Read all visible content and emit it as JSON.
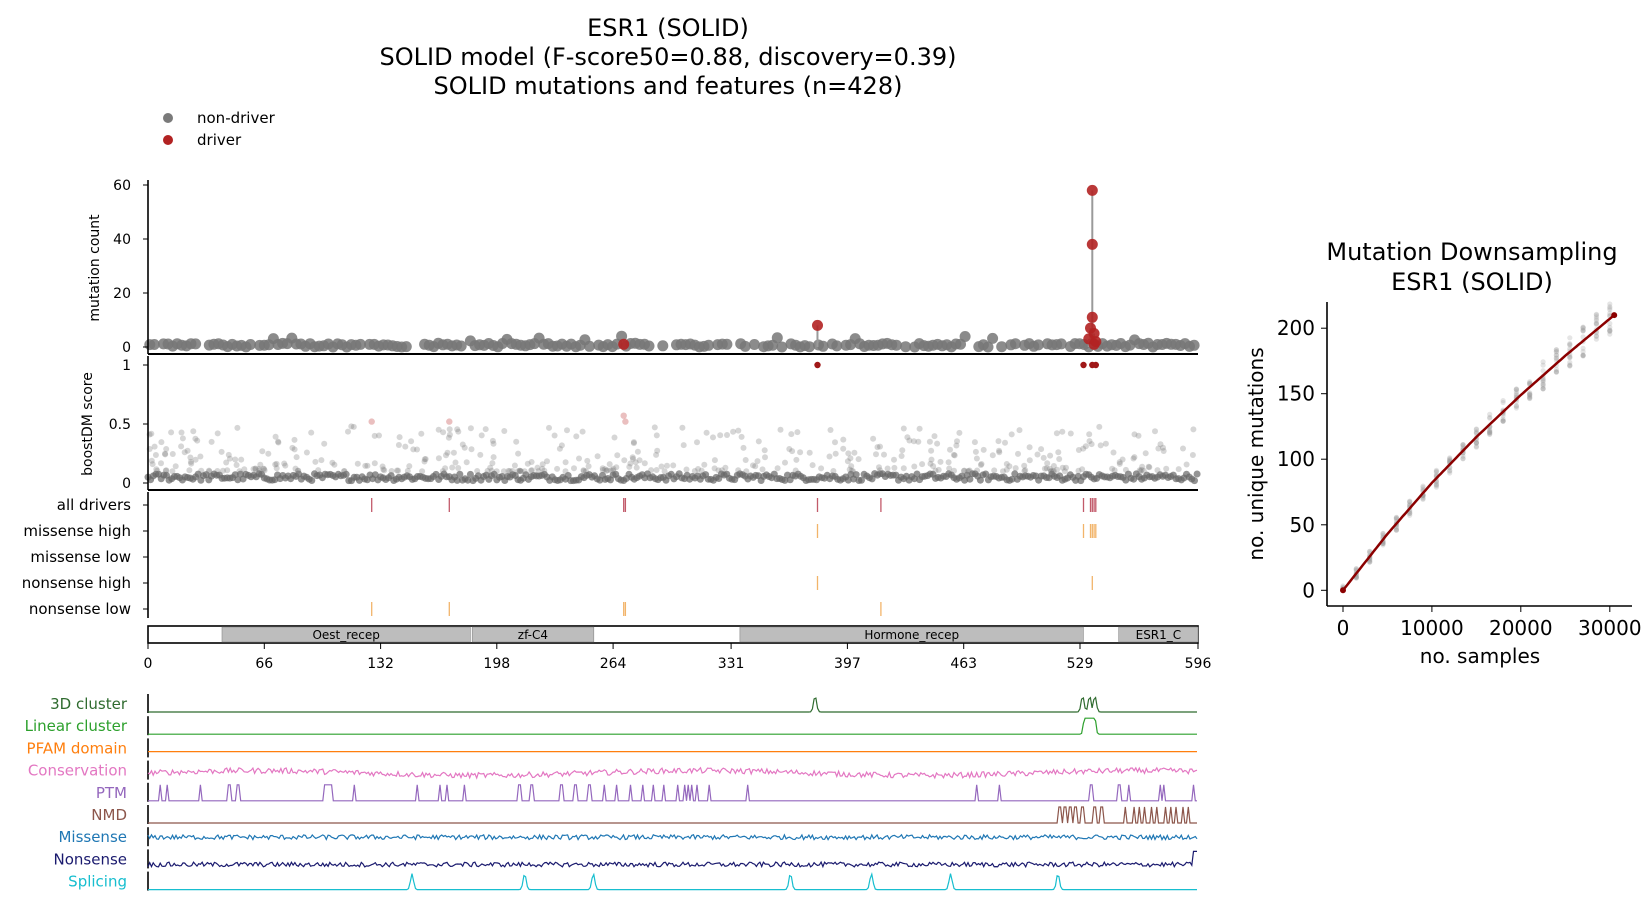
{
  "figure": {
    "title_lines": [
      "ESR1 (SOLID)",
      "SOLID model (F-score50=0.88, discovery=0.39)",
      "SOLID mutations and features (n=428)"
    ],
    "legend": [
      {
        "label": "non-driver",
        "color": "#7a7a7a"
      },
      {
        "label": "driver",
        "color": "#b22222"
      }
    ],
    "colors": {
      "driver": "#b22222",
      "non_driver": "#777777",
      "domain_fill": "#bdbdbd",
      "missense_tick": "#f0c080"
    }
  },
  "chart_data": [
    {
      "type": "scatter",
      "panel": "mutation count lollipop",
      "ylabel": "mutation count",
      "yticks": [
        0,
        20,
        40,
        60
      ],
      "ylim": [
        0,
        62
      ],
      "xlim": [
        0,
        596
      ],
      "driver_points": [
        {
          "pos": 536,
          "count": 58
        },
        {
          "pos": 536,
          "count": 38
        },
        {
          "pos": 536,
          "count": 11
        },
        {
          "pos": 535,
          "count": 7
        },
        {
          "pos": 537,
          "count": 5
        },
        {
          "pos": 534,
          "count": 3
        },
        {
          "pos": 538,
          "count": 2
        },
        {
          "pos": 537,
          "count": 1
        },
        {
          "pos": 380,
          "count": 8
        },
        {
          "pos": 270,
          "count": 1
        }
      ]
    },
    {
      "type": "scatter",
      "panel": "boostDM score",
      "ylabel": "boostDM score",
      "yticks": [
        0,
        0.5,
        1
      ],
      "ylim": [
        0,
        1.05
      ],
      "driver_points": [
        {
          "pos": 380,
          "score": 1
        },
        {
          "pos": 531,
          "score": 1
        },
        {
          "pos": 536,
          "score": 1
        },
        {
          "pos": 538,
          "score": 1
        }
      ],
      "highlight_points": [
        {
          "pos": 127,
          "score": 0.52
        },
        {
          "pos": 171,
          "score": 0.52
        },
        {
          "pos": 270,
          "score": 0.57
        },
        {
          "pos": 271,
          "score": 0.52
        }
      ]
    },
    {
      "type": "table",
      "panel": "driver tracks",
      "rows": [
        {
          "label": "all drivers",
          "positions": [
            127,
            171,
            270,
            271,
            380,
            416,
            531,
            535,
            536,
            537,
            538
          ],
          "color": "#c25a6a"
        },
        {
          "label": "missense high",
          "positions": [
            380,
            531,
            535,
            536,
            537,
            538
          ],
          "color": "#f2b46a"
        },
        {
          "label": "missense low",
          "positions": [],
          "color": "#f2b46a"
        },
        {
          "label": "nonsense high",
          "positions": [
            380,
            536
          ],
          "color": "#f2b46a"
        },
        {
          "label": "nonsense low",
          "positions": [
            127,
            171,
            270,
            271,
            416
          ],
          "color": "#f2b46a"
        }
      ]
    },
    {
      "type": "bar",
      "panel": "domain track",
      "xticks": [
        0,
        66,
        132,
        198,
        264,
        331,
        397,
        463,
        529,
        596
      ],
      "domains": [
        {
          "name": "Oest_recep",
          "start": 42,
          "end": 183
        },
        {
          "name": "zf-C4",
          "start": 184,
          "end": 253
        },
        {
          "name": "Hormone_recep",
          "start": 336,
          "end": 531
        },
        {
          "name": "ESR1_C",
          "start": 551,
          "end": 596
        }
      ]
    },
    {
      "type": "line",
      "panel": "feature tracks",
      "tracks": [
        {
          "label": "3D cluster",
          "color": "#2f6b2f",
          "kind": "peaks",
          "peaks": [
            379,
            531,
            535,
            538
          ]
        },
        {
          "label": "Linear cluster",
          "color": "#2ca02c",
          "kind": "plateau",
          "peaks": [
            535
          ]
        },
        {
          "label": "PFAM domain",
          "color": "#ff7f0e",
          "kind": "flat"
        },
        {
          "label": "Conservation",
          "color": "#e377c2",
          "kind": "noise"
        },
        {
          "label": "PTM",
          "color": "#9467bd",
          "kind": "spikes",
          "peaks": [
            7,
            11,
            30,
            46,
            51,
            101,
            102,
            104,
            117,
            153,
            166,
            170,
            180,
            211,
            218,
            235,
            243,
            251,
            259,
            266,
            274,
            281,
            287,
            293,
            301,
            305,
            307,
            309,
            312,
            319,
            341,
            471,
            484,
            536,
            552,
            557,
            575,
            577,
            594
          ]
        },
        {
          "label": "NMD",
          "color": "#8c564b",
          "kind": "dense",
          "peaks": [
            518,
            521,
            524,
            527,
            531,
            538,
            542,
            555,
            560,
            563,
            566,
            570,
            573,
            578,
            581,
            584,
            588,
            591
          ]
        },
        {
          "label": "Missense",
          "color": "#1f77b4",
          "kind": "noise"
        },
        {
          "label": "Nonsense",
          "color": "#1a1a6e",
          "kind": "noise"
        },
        {
          "label": "Splicing",
          "color": "#17becf",
          "kind": "peaks",
          "peaks": [
            150,
            214,
            253,
            365,
            411,
            456,
            517
          ]
        }
      ]
    },
    {
      "type": "line",
      "panel": "downsampling",
      "title": "Mutation Downsampling\nESR1 (SOLID)",
      "xlabel": "no. samples",
      "ylabel": "no. unique mutations",
      "xticks": [
        0,
        10000,
        20000,
        30000
      ],
      "yticks": [
        0,
        50,
        100,
        150,
        200
      ],
      "xlim": [
        -1800,
        32500
      ],
      "ylim": [
        -12,
        220
      ],
      "fit": {
        "x": [
          0,
          5000,
          10000,
          15000,
          20000,
          25000,
          30500
        ],
        "y": [
          0,
          43,
          82,
          117,
          149,
          179,
          210
        ]
      }
    }
  ]
}
